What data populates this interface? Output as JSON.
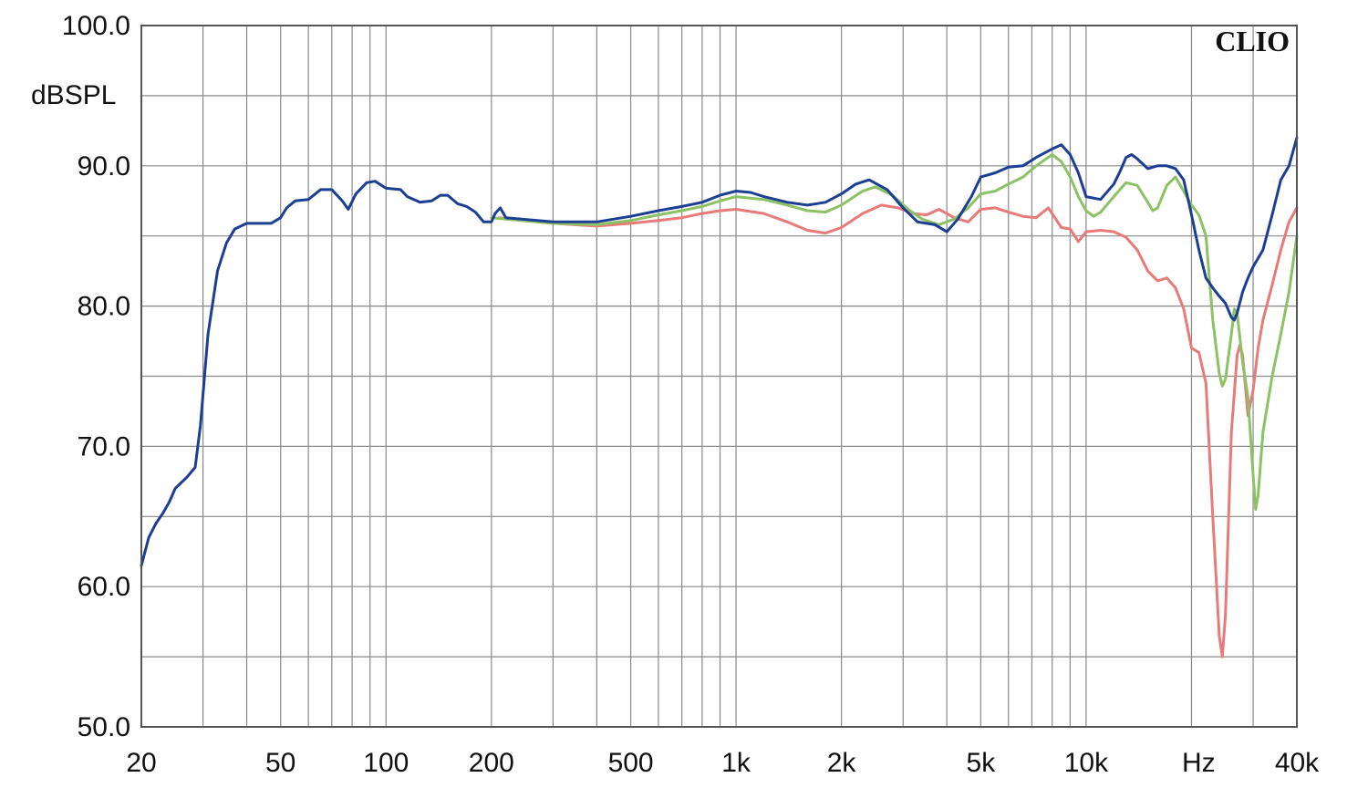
{
  "chart_data": {
    "type": "line",
    "ylabel": "dBSPL",
    "xunit_label": "Hz",
    "brand": "CLIO",
    "xscale": "log",
    "xlim": [
      20,
      40000
    ],
    "ylim": [
      50,
      100
    ],
    "grid": true,
    "colors": {
      "blue": "#1c3f94",
      "green": "#8cc164",
      "red": "#e87a7a",
      "grid": "#8a8a8a",
      "frame": "#555555"
    },
    "y_ticks": [
      {
        "value": 100,
        "label": "100.0"
      },
      {
        "value": 90,
        "label": "90.0"
      },
      {
        "value": 80,
        "label": "80.0"
      },
      {
        "value": 70,
        "label": "70.0"
      },
      {
        "value": 60,
        "label": "60.0"
      },
      {
        "value": 50,
        "label": "50.0"
      }
    ],
    "y_minor": [
      55,
      65,
      75,
      85,
      95
    ],
    "x_ticks": [
      {
        "value": 20,
        "label": "20"
      },
      {
        "value": 50,
        "label": "50"
      },
      {
        "value": 100,
        "label": "100"
      },
      {
        "value": 200,
        "label": "200"
      },
      {
        "value": 500,
        "label": "500"
      },
      {
        "value": 1000,
        "label": "1k"
      },
      {
        "value": 2000,
        "label": "2k"
      },
      {
        "value": 5000,
        "label": "5k"
      },
      {
        "value": 10000,
        "label": "10k"
      },
      {
        "value": 40000,
        "label": "40k"
      }
    ],
    "x_grid": [
      20,
      30,
      40,
      50,
      60,
      70,
      80,
      90,
      100,
      200,
      300,
      400,
      500,
      600,
      700,
      800,
      900,
      1000,
      2000,
      3000,
      4000,
      5000,
      6000,
      7000,
      8000,
      9000,
      10000,
      20000,
      30000,
      40000
    ],
    "series": [
      {
        "color_key": "red",
        "points": [
          [
            210,
            86.3
          ],
          [
            300,
            85.9
          ],
          [
            400,
            85.7
          ],
          [
            500,
            85.9
          ],
          [
            600,
            86.1
          ],
          [
            700,
            86.3
          ],
          [
            800,
            86.6
          ],
          [
            900,
            86.8
          ],
          [
            1000,
            86.9
          ],
          [
            1200,
            86.6
          ],
          [
            1400,
            86.0
          ],
          [
            1600,
            85.4
          ],
          [
            1800,
            85.2
          ],
          [
            2000,
            85.6
          ],
          [
            2300,
            86.6
          ],
          [
            2600,
            87.2
          ],
          [
            2900,
            87.0
          ],
          [
            3200,
            86.6
          ],
          [
            3500,
            86.5
          ],
          [
            3800,
            86.9
          ],
          [
            4200,
            86.3
          ],
          [
            4600,
            86.0
          ],
          [
            5000,
            86.9
          ],
          [
            5500,
            87.0
          ],
          [
            6000,
            86.7
          ],
          [
            6600,
            86.4
          ],
          [
            7200,
            86.3
          ],
          [
            7800,
            87.0
          ],
          [
            8500,
            85.6
          ],
          [
            9000,
            85.5
          ],
          [
            9500,
            84.6
          ],
          [
            10000,
            85.3
          ],
          [
            11000,
            85.4
          ],
          [
            12000,
            85.3
          ],
          [
            13000,
            84.9
          ],
          [
            14000,
            84.0
          ],
          [
            15000,
            82.5
          ],
          [
            16000,
            81.8
          ],
          [
            17000,
            82.0
          ],
          [
            18000,
            81.3
          ],
          [
            19000,
            79.8
          ],
          [
            20000,
            77.0
          ],
          [
            21000,
            76.7
          ],
          [
            22000,
            74.5
          ],
          [
            23000,
            65.0
          ],
          [
            24000,
            56.5
          ],
          [
            24500,
            55.0
          ],
          [
            25000,
            58.0
          ],
          [
            26000,
            71.0
          ],
          [
            27000,
            76.5
          ],
          [
            27500,
            77.2
          ],
          [
            28000,
            76.5
          ],
          [
            29000,
            72.2
          ],
          [
            30000,
            74.0
          ],
          [
            31000,
            77.0
          ],
          [
            32000,
            79.0
          ],
          [
            34000,
            81.5
          ],
          [
            36000,
            84.0
          ],
          [
            38000,
            86.0
          ],
          [
            40000,
            87.0
          ]
        ]
      },
      {
        "color_key": "green",
        "points": [
          [
            200,
            86.3
          ],
          [
            300,
            85.9
          ],
          [
            400,
            85.8
          ],
          [
            500,
            86.1
          ],
          [
            600,
            86.5
          ],
          [
            700,
            86.8
          ],
          [
            800,
            87.1
          ],
          [
            900,
            87.5
          ],
          [
            1000,
            87.8
          ],
          [
            1200,
            87.6
          ],
          [
            1400,
            87.2
          ],
          [
            1600,
            86.8
          ],
          [
            1800,
            86.7
          ],
          [
            2000,
            87.2
          ],
          [
            2300,
            88.2
          ],
          [
            2500,
            88.5
          ],
          [
            2800,
            87.9
          ],
          [
            3100,
            86.9
          ],
          [
            3400,
            86.2
          ],
          [
            3800,
            85.8
          ],
          [
            4200,
            86.2
          ],
          [
            4600,
            87.0
          ],
          [
            5000,
            88.0
          ],
          [
            5500,
            88.2
          ],
          [
            6000,
            88.7
          ],
          [
            6600,
            89.2
          ],
          [
            7200,
            90.0
          ],
          [
            8000,
            90.8
          ],
          [
            8500,
            90.3
          ],
          [
            9000,
            89.2
          ],
          [
            9500,
            87.8
          ],
          [
            10000,
            86.8
          ],
          [
            10500,
            86.4
          ],
          [
            11000,
            86.7
          ],
          [
            12000,
            87.8
          ],
          [
            13000,
            88.8
          ],
          [
            14000,
            88.6
          ],
          [
            15000,
            87.4
          ],
          [
            15500,
            86.8
          ],
          [
            16000,
            87.0
          ],
          [
            17000,
            88.6
          ],
          [
            18000,
            89.2
          ],
          [
            19000,
            88.2
          ],
          [
            20000,
            87.2
          ],
          [
            21000,
            86.5
          ],
          [
            22000,
            85.0
          ],
          [
            23000,
            79.0
          ],
          [
            24000,
            75.2
          ],
          [
            24500,
            74.3
          ],
          [
            25000,
            74.8
          ],
          [
            26000,
            78.0
          ],
          [
            26500,
            79.8
          ],
          [
            27000,
            79.5
          ],
          [
            28000,
            76.0
          ],
          [
            29000,
            73.5
          ],
          [
            30000,
            68.0
          ],
          [
            30500,
            65.5
          ],
          [
            31000,
            66.5
          ],
          [
            32000,
            71.0
          ],
          [
            34000,
            75.0
          ],
          [
            36000,
            78.0
          ],
          [
            38000,
            81.0
          ],
          [
            40000,
            85.0
          ]
        ]
      },
      {
        "color_key": "blue",
        "points": [
          [
            20,
            61.5
          ],
          [
            21,
            63.5
          ],
          [
            22,
            64.5
          ],
          [
            23,
            65.2
          ],
          [
            24,
            66.0
          ],
          [
            25,
            67.0
          ],
          [
            27,
            67.8
          ],
          [
            28.5,
            68.5
          ],
          [
            29.5,
            71.5
          ],
          [
            31,
            78.0
          ],
          [
            33,
            82.5
          ],
          [
            35,
            84.5
          ],
          [
            37,
            85.5
          ],
          [
            40,
            85.9
          ],
          [
            43,
            85.9
          ],
          [
            47,
            85.9
          ],
          [
            50,
            86.3
          ],
          [
            52,
            87.0
          ],
          [
            55,
            87.5
          ],
          [
            60,
            87.6
          ],
          [
            65,
            88.3
          ],
          [
            70,
            88.3
          ],
          [
            75,
            87.5
          ],
          [
            78,
            86.9
          ],
          [
            82,
            88.0
          ],
          [
            88,
            88.8
          ],
          [
            93,
            88.9
          ],
          [
            100,
            88.4
          ],
          [
            110,
            88.3
          ],
          [
            115,
            87.8
          ],
          [
            125,
            87.4
          ],
          [
            135,
            87.5
          ],
          [
            143,
            87.9
          ],
          [
            150,
            87.9
          ],
          [
            160,
            87.3
          ],
          [
            170,
            87.1
          ],
          [
            180,
            86.7
          ],
          [
            190,
            86.0
          ],
          [
            200,
            86.0
          ],
          [
            205,
            86.6
          ],
          [
            212,
            87.0
          ],
          [
            220,
            86.3
          ],
          [
            300,
            86.0
          ],
          [
            400,
            86.0
          ],
          [
            500,
            86.4
          ],
          [
            600,
            86.8
          ],
          [
            700,
            87.1
          ],
          [
            800,
            87.4
          ],
          [
            900,
            87.9
          ],
          [
            1000,
            88.2
          ],
          [
            1100,
            88.1
          ],
          [
            1200,
            87.8
          ],
          [
            1400,
            87.4
          ],
          [
            1600,
            87.2
          ],
          [
            1800,
            87.4
          ],
          [
            2000,
            88.0
          ],
          [
            2200,
            88.7
          ],
          [
            2400,
            89.0
          ],
          [
            2700,
            88.3
          ],
          [
            3000,
            87.0
          ],
          [
            3300,
            86.0
          ],
          [
            3700,
            85.8
          ],
          [
            4000,
            85.3
          ],
          [
            4300,
            86.2
          ],
          [
            4700,
            87.8
          ],
          [
            5000,
            89.2
          ],
          [
            5500,
            89.5
          ],
          [
            6000,
            89.9
          ],
          [
            6600,
            90.0
          ],
          [
            7200,
            90.6
          ],
          [
            8000,
            91.2
          ],
          [
            8500,
            91.5
          ],
          [
            9000,
            90.8
          ],
          [
            9500,
            89.5
          ],
          [
            10000,
            87.8
          ],
          [
            11000,
            87.6
          ],
          [
            12000,
            88.7
          ],
          [
            12500,
            89.6
          ],
          [
            13000,
            90.6
          ],
          [
            13500,
            90.8
          ],
          [
            14000,
            90.5
          ],
          [
            15000,
            89.8
          ],
          [
            16000,
            90.0
          ],
          [
            17000,
            90.0
          ],
          [
            18000,
            89.8
          ],
          [
            19000,
            89.0
          ],
          [
            20000,
            86.5
          ],
          [
            21000,
            84.0
          ],
          [
            22000,
            82.0
          ],
          [
            23000,
            81.3
          ],
          [
            24000,
            80.7
          ],
          [
            25000,
            80.2
          ],
          [
            26000,
            79.2
          ],
          [
            26500,
            79.0
          ],
          [
            27000,
            79.5
          ],
          [
            28000,
            81.0
          ],
          [
            29000,
            82.0
          ],
          [
            30000,
            82.8
          ],
          [
            32000,
            84.0
          ],
          [
            34000,
            86.5
          ],
          [
            36000,
            89.0
          ],
          [
            38000,
            90.0
          ],
          [
            40000,
            92.0
          ]
        ]
      }
    ]
  }
}
